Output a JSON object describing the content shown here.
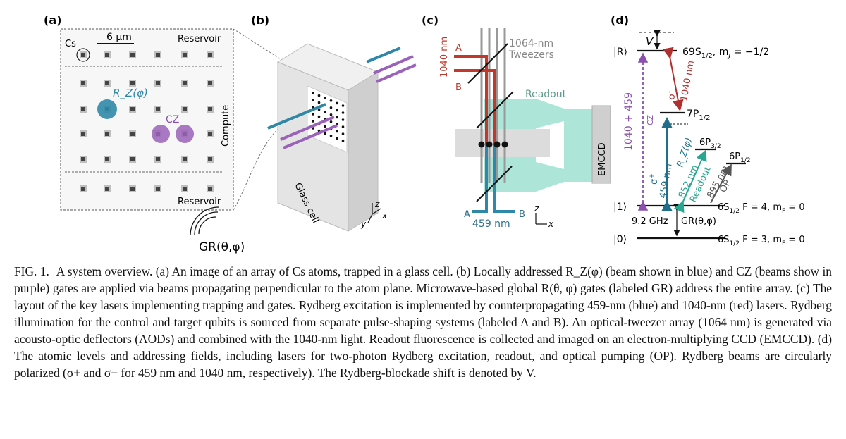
{
  "panels": {
    "a": {
      "label": "(a)",
      "cs": "Cs",
      "scale": "6 µm",
      "reservoir_top": "Reservoir",
      "reservoir_bottom": "Reservoir",
      "compute": "Compute",
      "rz_gate": "R_Z(φ)",
      "cz_gate": "CZ",
      "gr_label": "GR(θ,φ)",
      "colors": {
        "rz": "#2f88a8",
        "cz": "#9a62b8"
      }
    },
    "b": {
      "label": "(b)",
      "glass_cell": "Glass cell",
      "axis_z": "z",
      "axis_x": "x",
      "axis_y": "y"
    },
    "c": {
      "label": "(c)",
      "red_beam": "1040 nm",
      "tweezers_1": "1064-nm",
      "tweezers_2": "Tweezers",
      "a_top": "A",
      "b_top": "B",
      "readout": "Readout",
      "emccd": "EMCCD",
      "a_bottom": "A",
      "b_bottom": "B",
      "blue_beam": "459 nm",
      "axis_z": "z",
      "axis_x": "x",
      "colors": {
        "red": "#c0392b",
        "blue": "#2f88a8",
        "readout": "#8fd8c8",
        "tweezer": "#999999"
      }
    },
    "d": {
      "label": "(d)",
      "v": "V",
      "ket_r": "|R⟩",
      "level_69s": "69S",
      "level_69s_sub": "1/2",
      "level_69s_mj": ", m",
      "level_69s_mj_sub": "J",
      "level_69s_mj_val": " = −1/2",
      "sigma_minus": "σ",
      "sigma_minus_sup": "−",
      "red_1040": "1040 nm",
      "level_7p": "7P",
      "level_7p_sub": "1/2",
      "purple_sum": "1040 + 459",
      "cz": "CZ",
      "sigma_plus": "σ",
      "sigma_plus_sup": "+",
      "blue_459": "459 nm",
      "rz": "R_Z(φ)",
      "level_6p32": "6P",
      "level_6p32_sub": "3/2",
      "level_6p12": "6P",
      "level_6p12_sub": "1/2",
      "readout_nm": "852 nm",
      "readout": "Readout",
      "op_nm": "895 nm",
      "op": "OP",
      "ket_1": "|1⟩",
      "ket_0": "|0⟩",
      "level_1": "6S",
      "level_1_sub": "1/2",
      "level_1_f": " F = 4, m",
      "level_1_mf": "F",
      "level_1_val": " = 0",
      "level_0": "6S",
      "level_0_sub": "1/2",
      "level_0_f": " F = 3, m",
      "level_0_mf": "F",
      "level_0_val": " = 0",
      "ghz": "9.2 GHz",
      "gr": "GR(θ,φ)"
    }
  },
  "caption": {
    "lead": "FIG. 1.",
    "text": "A system overview. (a) An image of an array of Cs atoms, trapped in a glass cell. (b) Locally addressed R_Z(φ) (beam shown in blue) and CZ (beams show in purple) gates are applied via beams propagating perpendicular to the atom plane. Microwave-based global R(θ, φ) gates (labeled GR) address the entire array. (c) The layout of the key lasers implementing trapping and gates. Rydberg excitation is implemented by counterpropagating 459-nm (blue) and 1040-nm (red) lasers. Rydberg illumination for the control and target qubits is sourced from separate pulse-shaping systems (labeled A and B). An optical-tweezer array (1064 nm) is generated via acousto-optic deflectors (AODs) and combined with the 1040-nm light. Readout fluorescence is collected and imaged on an electron-multiplying CCD (EMCCD). (d) The atomic levels and addressing fields, including lasers for two-photon Rydberg excitation, readout, and optical pumping (OP). Rydberg beams are circularly polarized (σ+ and σ− for 459 nm and 1040 nm, respectively). The Rydberg-blockade shift is denoted by V."
  }
}
